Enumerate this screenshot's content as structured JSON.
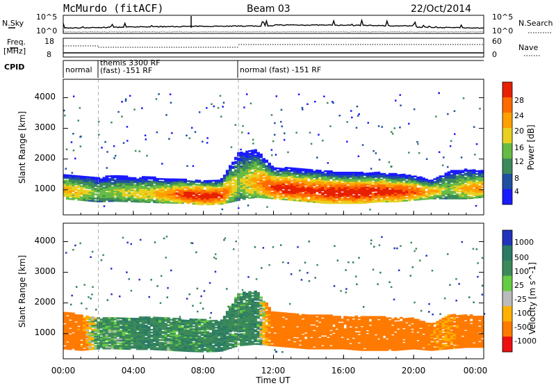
{
  "header": {
    "station": "McMurdo (fitACF)",
    "beam": "Beam 03",
    "date": "22/Oct/2014"
  },
  "noise_panel": {
    "left_label": "N.Sky",
    "left_ticks": [
      "10^5",
      "10^0"
    ],
    "right_label": "N.Search",
    "right_ticks": [
      "10^5",
      "10^0"
    ]
  },
  "freq_panel": {
    "left_label_top": "Freq.",
    "left_label_bottom": "[MHz]",
    "left_ticks": [
      "18",
      "8"
    ],
    "right_label": "Nave",
    "right_ticks": [
      "60",
      "0"
    ]
  },
  "cpid_panel": {
    "label": "CPID",
    "segments": [
      {
        "text": "normal",
        "start_hour": 0.0,
        "end_hour": 2.0
      },
      {
        "text": "themis 3300 RF",
        "start_hour": 2.0,
        "end_hour": 10.0
      },
      {
        "text": "(fast) -151 RF",
        "start_hour": 2.0,
        "end_hour": 10.0
      },
      {
        "text": "normal (fast) -151 RF",
        "start_hour": 10.0,
        "end_hour": 24.0
      }
    ]
  },
  "time_axis": {
    "label": "Time UT",
    "ticks": [
      "00:00",
      "04:00",
      "08:00",
      "12:00",
      "16:00",
      "20:00",
      "00:00"
    ]
  },
  "power_panel": {
    "ylabel": "Slant Range [km]",
    "yticks": [
      "1000",
      "2000",
      "3000",
      "4000"
    ],
    "colorbar_label": "Power [dB]",
    "colorbar_ticks": [
      "4",
      "8",
      "12",
      "16",
      "20",
      "24",
      "28"
    ]
  },
  "velocity_panel": {
    "ylabel": "Slant Range [km]",
    "yticks": [
      "1000",
      "2000",
      "3000",
      "4000"
    ],
    "colorbar_label": "Velocity [m s^-1]",
    "colorbar_ticks": [
      "1000",
      "500",
      "100",
      "25",
      "-25",
      "-100",
      "-500",
      "-1000"
    ]
  },
  "chart_data": [
    {
      "type": "heatmap",
      "title": "McMurdo (fitACF) Beam 03 22/Oct/2014",
      "xlabel": "Time UT",
      "ylabel": "Slant Range [km]",
      "xlim_hours": [
        0,
        24
      ],
      "ylim_km": [
        180,
        4600
      ],
      "colorbar": {
        "label": "Power [dB]",
        "range": [
          0,
          32
        ],
        "ticks": [
          4,
          8,
          12,
          16,
          20,
          24,
          28
        ]
      },
      "colormap": [
        "#1a1aff",
        "#1f4fa0",
        "#3c8a5a",
        "#66bb44",
        "#e8d020",
        "#ffa000",
        "#ff6a00",
        "#e82000"
      ],
      "echo_band_km": [
        [
          0,
          700,
          1500
        ],
        [
          1,
          650,
          1450
        ],
        [
          2,
          600,
          1400
        ],
        [
          3,
          620,
          1450
        ],
        [
          4,
          600,
          1400
        ],
        [
          5,
          580,
          1400
        ],
        [
          6,
          560,
          1350
        ],
        [
          7,
          550,
          1350
        ],
        [
          8,
          500,
          1300
        ],
        [
          9,
          520,
          1300
        ],
        [
          10,
          650,
          2200
        ],
        [
          11,
          750,
          2300
        ],
        [
          12,
          700,
          1700
        ],
        [
          13,
          650,
          1700
        ],
        [
          14,
          600,
          1650
        ],
        [
          15,
          550,
          1600
        ],
        [
          16,
          550,
          1550
        ],
        [
          17,
          550,
          1550
        ],
        [
          18,
          600,
          1550
        ],
        [
          19,
          600,
          1500
        ],
        [
          20,
          650,
          1450
        ],
        [
          21,
          700,
          1300
        ],
        [
          22,
          700,
          1600
        ],
        [
          23,
          700,
          1650
        ],
        [
          24,
          750,
          1600
        ]
      ],
      "peak_power_db": [
        [
          0,
          22
        ],
        [
          1,
          20
        ],
        [
          2,
          14
        ],
        [
          3,
          16
        ],
        [
          4,
          18
        ],
        [
          5,
          20
        ],
        [
          6,
          24
        ],
        [
          7,
          30
        ],
        [
          8,
          32
        ],
        [
          9,
          30
        ],
        [
          10,
          16
        ],
        [
          11,
          22
        ],
        [
          12,
          30
        ],
        [
          13,
          31
        ],
        [
          14,
          30
        ],
        [
          15,
          31
        ],
        [
          16,
          32
        ],
        [
          17,
          32
        ],
        [
          18,
          31
        ],
        [
          19,
          30
        ],
        [
          20,
          28
        ],
        [
          21,
          22
        ],
        [
          22,
          14
        ],
        [
          23,
          22
        ],
        [
          24,
          24
        ]
      ]
    },
    {
      "type": "heatmap",
      "xlabel": "Time UT",
      "ylabel": "Slant Range [km]",
      "xlim_hours": [
        0,
        24
      ],
      "ylim_km": [
        180,
        4600
      ],
      "colorbar": {
        "label": "Velocity [m s^-1]",
        "ticks": [
          1000,
          500,
          100,
          25,
          -25,
          -100,
          -500,
          -1000
        ]
      },
      "colormap": [
        "#2233bb",
        "#2a7a66",
        "#3c8a5a",
        "#66cc44",
        "#bbbbbb",
        "#ffb000",
        "#ff7a00",
        "#ee1010"
      ],
      "echo_band_km": [
        [
          0,
          500,
          1700
        ],
        [
          1,
          450,
          1600
        ],
        [
          2,
          500,
          1500
        ],
        [
          3,
          500,
          1500
        ],
        [
          4,
          480,
          1500
        ],
        [
          5,
          480,
          1550
        ],
        [
          6,
          450,
          1500
        ],
        [
          7,
          420,
          1450
        ],
        [
          8,
          400,
          1450
        ],
        [
          9,
          420,
          1400
        ],
        [
          10,
          600,
          2300
        ],
        [
          11,
          650,
          2400
        ],
        [
          12,
          600,
          1700
        ],
        [
          13,
          550,
          1650
        ],
        [
          14,
          500,
          1600
        ],
        [
          15,
          500,
          1600
        ],
        [
          16,
          500,
          1550
        ],
        [
          17,
          450,
          1550
        ],
        [
          18,
          450,
          1550
        ],
        [
          19,
          450,
          1500
        ],
        [
          20,
          500,
          1500
        ],
        [
          21,
          450,
          1300
        ],
        [
          22,
          500,
          1600
        ],
        [
          23,
          550,
          1600
        ],
        [
          24,
          550,
          1550
        ]
      ],
      "dominant_velocity": [
        [
          0,
          -200
        ],
        [
          1,
          -150
        ],
        [
          2,
          60
        ],
        [
          3,
          40
        ],
        [
          4,
          80
        ],
        [
          5,
          100
        ],
        [
          6,
          50
        ],
        [
          7,
          80
        ],
        [
          8,
          60
        ],
        [
          9,
          100
        ],
        [
          10,
          60
        ],
        [
          11,
          100
        ],
        [
          12,
          -200
        ],
        [
          13,
          -250
        ],
        [
          14,
          -200
        ],
        [
          15,
          -220
        ],
        [
          16,
          -180
        ],
        [
          17,
          -200
        ],
        [
          18,
          -220
        ],
        [
          19,
          -180
        ],
        [
          20,
          -200
        ],
        [
          21,
          -150
        ],
        [
          22,
          -100
        ],
        [
          23,
          -200
        ],
        [
          24,
          -200
        ]
      ]
    }
  ]
}
